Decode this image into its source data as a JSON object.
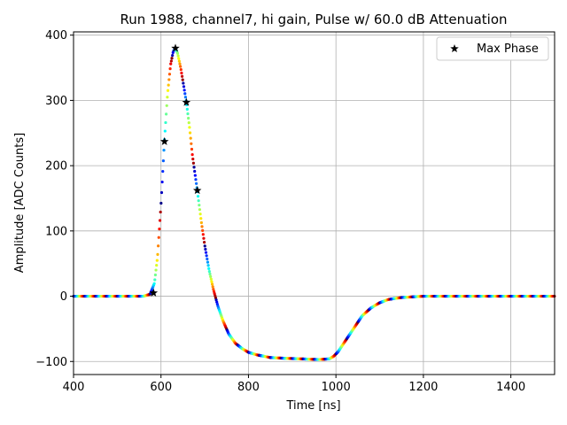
{
  "chart_data": {
    "type": "scatter",
    "title": "Run 1988, channel7, hi gain, Pulse w/ 60.0 dB Attenuation",
    "xlabel": "Time [ns]",
    "ylabel": "Amplitude [ADC Counts]",
    "xlim": [
      400,
      1500
    ],
    "ylim": [
      -120,
      405
    ],
    "xticks": [
      400,
      600,
      800,
      1000,
      1200,
      1400
    ],
    "yticks": [
      -100,
      0,
      100,
      200,
      300,
      400
    ],
    "grid": true,
    "legend_position": "top-right",
    "colormap": "jet",
    "series": [
      {
        "name": "Max Phase",
        "marker": "star",
        "color": "#000000",
        "x": [
          583,
          608,
          633,
          658,
          683
        ],
        "y": [
          5,
          237,
          380,
          297,
          162
        ]
      }
    ],
    "pulse_waveform": {
      "x": [
        400,
        560,
        575,
        585,
        592,
        600,
        608,
        615,
        622,
        628,
        633,
        638,
        645,
        652,
        658,
        665,
        672,
        683,
        692,
        700,
        710,
        720,
        730,
        742,
        755,
        770,
        785,
        800,
        820,
        850,
        880,
        920,
        960,
        985,
        995,
        1005,
        1020,
        1040,
        1060,
        1080,
        1100,
        1120,
        1150,
        1200,
        1300,
        1500
      ],
      "y": [
        0,
        0,
        3,
        20,
        60,
        140,
        240,
        310,
        355,
        375,
        380,
        372,
        350,
        322,
        297,
        260,
        215,
        162,
        115,
        78,
        40,
        10,
        -15,
        -38,
        -58,
        -72,
        -80,
        -86,
        -90,
        -94,
        -95,
        -96,
        -97,
        -96,
        -92,
        -85,
        -70,
        -50,
        -30,
        -18,
        -10,
        -5,
        -2,
        0,
        0,
        0
      ]
    }
  }
}
